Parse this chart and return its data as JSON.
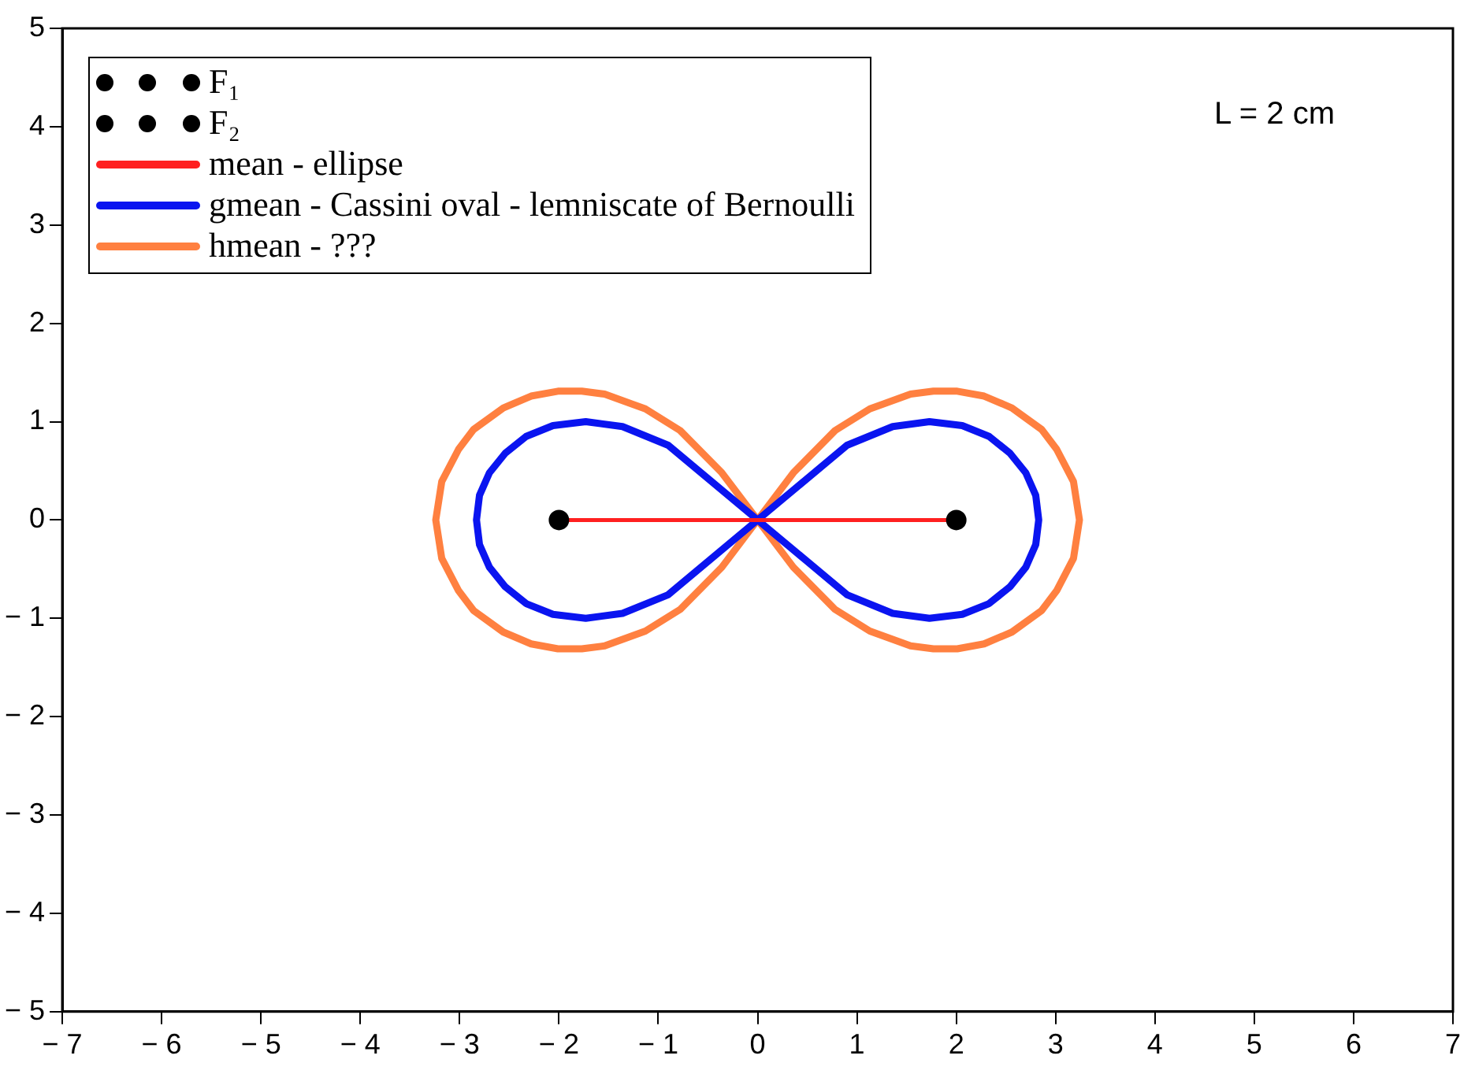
{
  "chart_data": {
    "type": "line",
    "xlim": [
      -7,
      7
    ],
    "ylim": [
      -5,
      5
    ],
    "xticks": [
      -7,
      -6,
      -5,
      -4,
      -3,
      -2,
      -1,
      0,
      1,
      2,
      3,
      4,
      5,
      6,
      7
    ],
    "yticks": [
      -5,
      -4,
      -3,
      -2,
      -1,
      0,
      1,
      2,
      3,
      4,
      5
    ],
    "grid": false,
    "legend": "top left",
    "annotations": [
      "L = 2 cm"
    ],
    "series": [
      {
        "name": "F₁",
        "type": "scatter",
        "marker": "circle",
        "color": "#000000",
        "x": [
          -2
        ],
        "values": [
          0
        ]
      },
      {
        "name": "F₂",
        "type": "scatter",
        "marker": "circle",
        "color": "#000000",
        "x": [
          2
        ],
        "values": [
          0
        ]
      },
      {
        "name": "mean - ellipse",
        "marker": "none",
        "color": "#ff2020",
        "x": [
          -2,
          2
        ],
        "values": [
          0,
          0
        ]
      },
      {
        "name": "gmean - Cassini oval - lemniscate of Bernoulli",
        "marker": "none",
        "color": "#0a14f0",
        "x": [
          -2.83,
          -2.8,
          -2.7,
          -2.54,
          -2.33,
          -2.06,
          -1.73,
          -1.36,
          -0.9,
          0,
          0.9,
          1.36,
          1.73,
          2.06,
          2.33,
          2.54,
          2.7,
          2.8,
          2.83,
          null,
          -2.83,
          -2.8,
          -2.7,
          -2.54,
          -2.33,
          -2.06,
          -1.73,
          -1.36,
          -0.9,
          0,
          0.9,
          1.36,
          1.73,
          2.06,
          2.33,
          2.54,
          2.7,
          2.8,
          2.83
        ],
        "values": [
          0,
          0.25,
          0.48,
          0.68,
          0.85,
          0.96,
          1,
          0.95,
          0.76,
          0,
          0.76,
          0.95,
          1,
          0.96,
          0.85,
          0.68,
          0.48,
          0.25,
          0,
          null,
          0,
          -0.25,
          -0.48,
          -0.68,
          -0.85,
          -0.96,
          -1,
          -0.95,
          -0.76,
          0,
          -0.76,
          -0.95,
          -1,
          -0.96,
          -0.85,
          -0.68,
          -0.48,
          -0.25,
          0
        ]
      },
      {
        "name": "hmean - ???",
        "marker": "none",
        "color": "#ff8040",
        "x": [
          -3.24,
          -3.18,
          -3.01,
          -2.86,
          -2.56,
          -2.28,
          -2.01,
          -1.77,
          -1.54,
          -1.13,
          -0.78,
          -0.36,
          0,
          0.36,
          0.78,
          1.13,
          1.54,
          1.77,
          2.01,
          2.28,
          2.56,
          2.86,
          3.01,
          3.18,
          3.24,
          null,
          -3.24,
          -3.18,
          -3.01,
          -2.86,
          -2.56,
          -2.28,
          -2.01,
          -1.77,
          -1.54,
          -1.13,
          -0.78,
          -0.36,
          0,
          0.36,
          0.78,
          1.13,
          1.54,
          1.77,
          2.01,
          2.28,
          2.56,
          2.86,
          3.01,
          3.18,
          3.24
        ],
        "values": [
          0,
          0.39,
          0.72,
          0.92,
          1.14,
          1.26,
          1.31,
          1.31,
          1.28,
          1.13,
          0.91,
          0.48,
          0,
          0.48,
          0.91,
          1.13,
          1.28,
          1.31,
          1.31,
          1.26,
          1.14,
          0.92,
          0.72,
          0.39,
          0,
          null,
          0,
          -0.39,
          -0.72,
          -0.92,
          -1.14,
          -1.26,
          -1.31,
          -1.31,
          -1.28,
          -1.13,
          -0.91,
          -0.48,
          0,
          -0.48,
          -0.91,
          -1.13,
          -1.28,
          -1.31,
          -1.31,
          -1.26,
          -1.14,
          -0.92,
          -0.72,
          -0.39,
          0
        ]
      }
    ]
  }
}
